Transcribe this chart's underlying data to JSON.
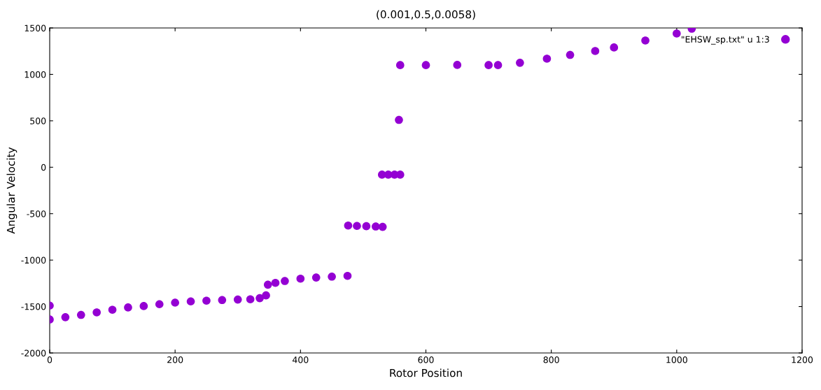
{
  "chart_data": {
    "type": "scatter",
    "title": "(0.001,0.5,0.0058)",
    "xlabel": "Rotor Position",
    "ylabel": "Angular Velocity",
    "xlim": [
      0,
      1200
    ],
    "xticks": [
      0,
      200,
      400,
      600,
      800,
      1000,
      1200
    ],
    "ylim": [
      -2000,
      1500
    ],
    "yticks": [
      -2000,
      -1500,
      -1000,
      -500,
      0,
      500,
      1000,
      1500
    ],
    "grid": false,
    "legend": "top right",
    "marker": "circle",
    "series": [
      {
        "name": "\"EHSW_sp.txt\" u 1:3",
        "color": "#9400d3",
        "x": [
          0,
          0,
          25,
          50,
          75,
          100,
          125,
          150,
          175,
          200,
          225,
          250,
          275,
          300,
          320,
          335,
          345,
          348,
          360,
          375,
          400,
          425,
          450,
          475,
          476,
          490,
          505,
          520,
          531,
          530,
          540,
          550,
          559,
          557,
          559,
          600,
          650,
          700,
          715,
          750,
          793,
          830,
          870,
          900,
          950,
          1000,
          1024
        ],
        "values": [
          -1490,
          -1640,
          -1615,
          -1590,
          -1563,
          -1535,
          -1510,
          -1495,
          -1475,
          -1458,
          -1445,
          -1437,
          -1430,
          -1425,
          -1422,
          -1410,
          -1380,
          -1265,
          -1245,
          -1225,
          -1200,
          -1188,
          -1178,
          -1170,
          -628,
          -632,
          -635,
          -638,
          -642,
          -80,
          -80,
          -80,
          -80,
          510,
          1100,
          1100,
          1102,
          1100,
          1100,
          1125,
          1169,
          1210,
          1252,
          1290,
          1365,
          1440,
          1492
        ]
      }
    ]
  }
}
